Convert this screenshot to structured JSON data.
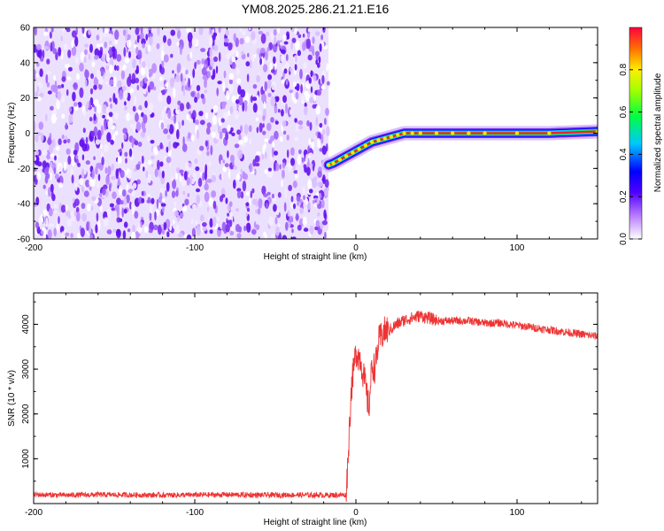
{
  "title": "YM08.2025.286.21.21.E16",
  "chart_data": [
    {
      "type": "heatmap",
      "xlabel": "Height of straight line (km)",
      "ylabel": "Frequency (Hz)",
      "xlim": [
        -200,
        150
      ],
      "ylim": [
        -60,
        60
      ],
      "xticks": [
        -200,
        -100,
        0,
        100
      ],
      "yticks": [
        -60,
        -40,
        -20,
        0,
        20,
        40,
        60
      ],
      "noise_region_x": [
        -200,
        -17
      ],
      "ridge": {
        "x": [
          -17,
          -14,
          -10,
          -6,
          -2,
          2,
          6,
          10,
          14,
          18,
          22,
          26,
          30,
          35,
          40,
          50,
          60,
          70,
          80,
          100,
          120,
          150
        ],
        "y": [
          -18,
          -17,
          -15,
          -13,
          -11,
          -9,
          -7,
          -5,
          -4,
          -3,
          -2,
          -1,
          0,
          0,
          0,
          0,
          0,
          0,
          0,
          0,
          0,
          1
        ]
      },
      "colorbar": {
        "label": "Normalized spectral amplitude",
        "range": [
          0,
          1
        ],
        "ticks": [
          "0.0",
          "0.2",
          "0.4",
          "0.6",
          "0.8"
        ]
      }
    },
    {
      "type": "line",
      "xlabel": "Height of straight line (km)",
      "ylabel": "SNR (10 * v/v)",
      "xlim": [
        -200,
        150
      ],
      "ylim": [
        0,
        4700
      ],
      "xticks": [
        -200,
        -100,
        0,
        100
      ],
      "yticks": [
        1000,
        2000,
        3000,
        4000
      ],
      "color": "#ee3333",
      "series": [
        {
          "x": [
            -200,
            -180,
            -160,
            -140,
            -120,
            -100,
            -80,
            -60,
            -40,
            -20,
            -6,
            -5,
            -3,
            0,
            3,
            6,
            8,
            10,
            12,
            14,
            17,
            20,
            25,
            30,
            35,
            40,
            45,
            50,
            60,
            70,
            80,
            90,
            100,
            110,
            120,
            130,
            140,
            150
          ],
          "y": [
            180,
            170,
            180,
            175,
            170,
            175,
            180,
            170,
            175,
            170,
            175,
            800,
            2400,
            3300,
            3100,
            2500,
            2000,
            3000,
            2900,
            3500,
            3700,
            3800,
            3950,
            4050,
            4100,
            4150,
            4100,
            4050,
            4050,
            4050,
            4000,
            4000,
            3950,
            3900,
            3850,
            3800,
            3750,
            3700
          ]
        }
      ]
    }
  ]
}
